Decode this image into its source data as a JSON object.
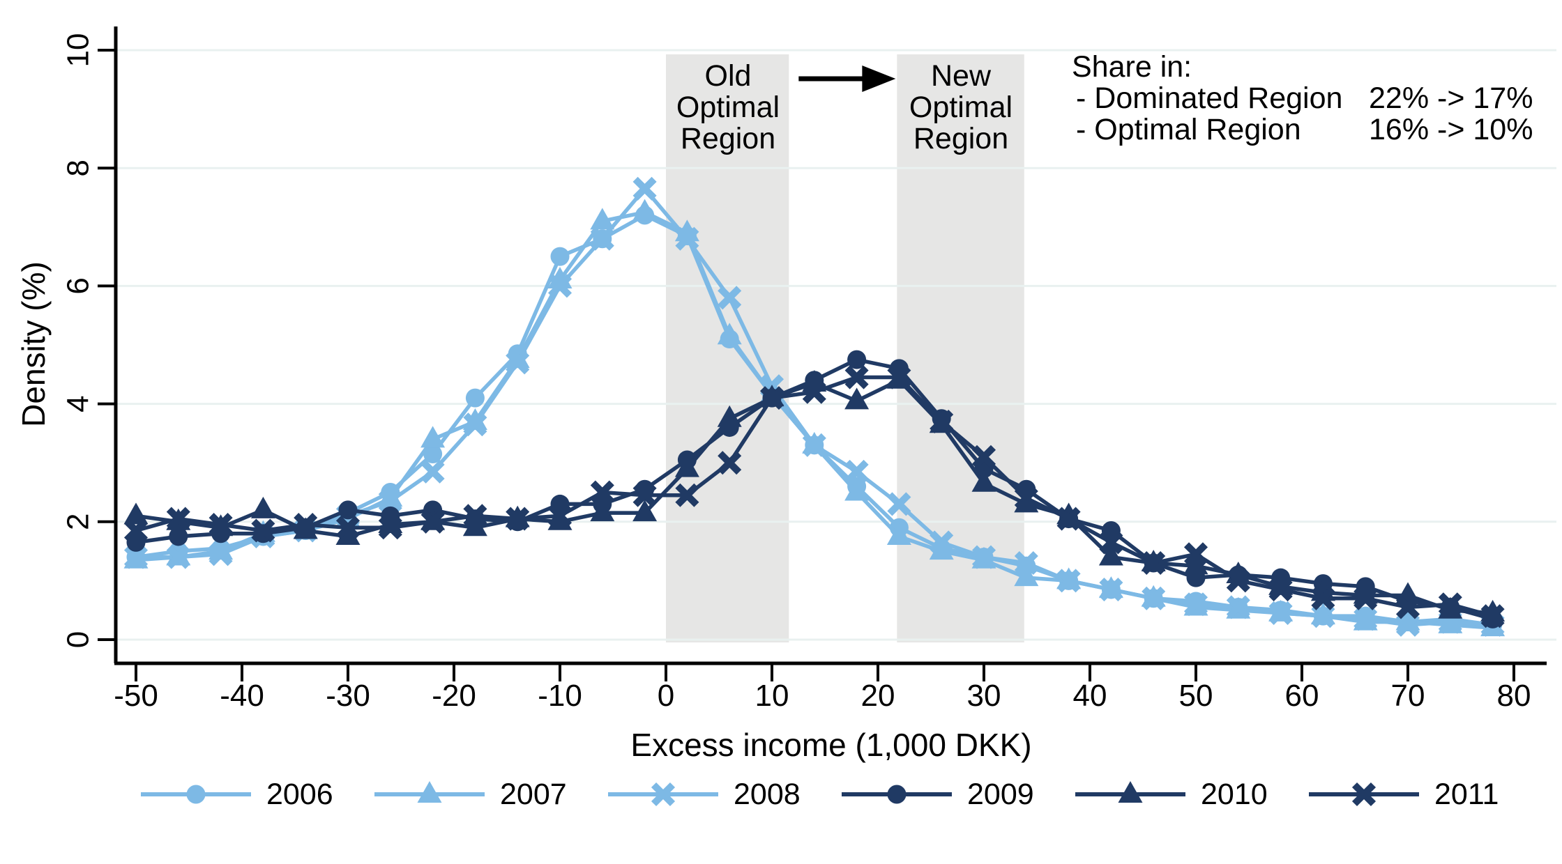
{
  "chart_data": {
    "type": "line",
    "title": "",
    "xlabel": "Excess income (1,000 DKK)",
    "ylabel": "Density (%)",
    "xlim": [
      -50,
      80
    ],
    "ylim": [
      0,
      10
    ],
    "x_ticks": [
      -50,
      -40,
      -30,
      -20,
      -10,
      0,
      10,
      20,
      30,
      40,
      50,
      60,
      70,
      80
    ],
    "y_ticks": [
      0,
      2,
      4,
      6,
      8,
      10
    ],
    "grid": true,
    "legend_position": "bottom",
    "x": [
      -50,
      -46,
      -42,
      -38,
      -34,
      -30,
      -26,
      -22,
      -18,
      -14,
      -10,
      -6,
      -2,
      2,
      6,
      10,
      14,
      18,
      22,
      26,
      30,
      34,
      38,
      42,
      46,
      50,
      54,
      58,
      62,
      66,
      70,
      74,
      78
    ],
    "series": [
      {
        "name": "2006",
        "color": "#7db9e5",
        "marker": "circle",
        "values": [
          1.4,
          1.5,
          1.55,
          1.75,
          1.85,
          2.15,
          2.5,
          3.15,
          4.1,
          4.85,
          6.5,
          6.8,
          7.2,
          6.85,
          5.1,
          4.15,
          3.3,
          2.6,
          1.9,
          1.55,
          1.4,
          1.25,
          1.0,
          0.85,
          0.7,
          0.65,
          0.55,
          0.5,
          0.4,
          0.4,
          0.3,
          0.35,
          0.25
        ]
      },
      {
        "name": "2007",
        "color": "#7db9e5",
        "marker": "triangle",
        "values": [
          1.35,
          1.4,
          1.5,
          1.8,
          1.85,
          2.05,
          2.4,
          3.4,
          3.7,
          4.75,
          6.1,
          7.1,
          7.25,
          6.9,
          5.15,
          4.15,
          3.3,
          2.5,
          1.75,
          1.5,
          1.35,
          1.05,
          1.0,
          0.85,
          0.7,
          0.55,
          0.5,
          0.45,
          0.4,
          0.3,
          0.3,
          0.25,
          0.2
        ]
      },
      {
        "name": "2008",
        "color": "#7db9e5",
        "marker": "x",
        "values": [
          1.4,
          1.4,
          1.45,
          1.75,
          1.85,
          2.1,
          2.35,
          2.85,
          3.65,
          4.7,
          6.0,
          6.8,
          7.65,
          6.8,
          5.8,
          4.3,
          3.3,
          2.85,
          2.3,
          1.65,
          1.4,
          1.3,
          1.0,
          0.85,
          0.7,
          0.6,
          0.55,
          0.45,
          0.4,
          0.35,
          0.25,
          0.3,
          0.25
        ]
      },
      {
        "name": "2009",
        "color": "#203a64",
        "marker": "circle",
        "values": [
          1.65,
          1.75,
          1.8,
          1.8,
          1.9,
          2.2,
          2.1,
          2.2,
          2.05,
          2.0,
          2.3,
          2.3,
          2.55,
          3.05,
          3.6,
          4.1,
          4.4,
          4.75,
          4.6,
          3.75,
          2.9,
          2.55,
          2.05,
          1.85,
          1.3,
          1.05,
          1.1,
          1.05,
          0.95,
          0.9,
          0.65,
          0.55,
          0.35
        ]
      },
      {
        "name": "2010",
        "color": "#203a64",
        "marker": "triangle",
        "values": [
          2.1,
          2.0,
          1.9,
          2.2,
          1.85,
          1.75,
          1.95,
          2.0,
          1.9,
          2.05,
          2.0,
          2.15,
          2.15,
          2.9,
          3.75,
          4.1,
          4.35,
          4.05,
          4.4,
          3.65,
          2.65,
          2.3,
          2.1,
          1.4,
          1.3,
          1.25,
          1.1,
          0.9,
          0.8,
          0.75,
          0.75,
          0.5,
          0.45
        ]
      },
      {
        "name": "2011",
        "color": "#203a64",
        "marker": "x",
        "values": [
          1.85,
          2.05,
          1.95,
          1.85,
          1.95,
          1.9,
          1.9,
          2.0,
          2.1,
          2.05,
          2.1,
          2.5,
          2.45,
          2.45,
          3.0,
          4.1,
          4.2,
          4.45,
          4.45,
          3.7,
          3.1,
          2.4,
          2.05,
          1.65,
          1.3,
          1.45,
          1.0,
          0.85,
          0.7,
          0.7,
          0.55,
          0.6,
          0.4
        ]
      }
    ],
    "shaded_regions": [
      {
        "x_from": 0,
        "x_to": 11.6,
        "label": "Old Optimal Region",
        "label_lines": [
          "Old",
          "Optimal",
          "Region"
        ]
      },
      {
        "x_from": 21.8,
        "x_to": 33.8,
        "label": "New Optimal Region",
        "label_lines": [
          "New",
          "Optimal",
          "Region"
        ]
      }
    ],
    "arrow_between_regions": true,
    "annotation": {
      "title": "Share in:",
      "rows": [
        {
          "label": "- Dominated Region",
          "value": "22% -> 17%"
        },
        {
          "label": "- Optimal Region",
          "value": "16% -> 10%"
        }
      ]
    }
  },
  "colors": {
    "light_series": "#7db9e5",
    "dark_series": "#203a64",
    "shaded_region": "#e6e6e5",
    "gridline": "#e9f1f0",
    "axis": "#000000",
    "background": "#ffffff"
  }
}
